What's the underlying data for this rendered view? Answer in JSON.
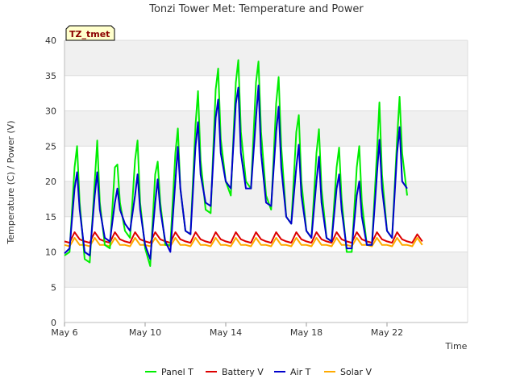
{
  "chart_data": {
    "type": "line",
    "title": "Tonzi Tower Met: Temperature and Power",
    "xlabel": "Time",
    "ylabel": "Temperature (C) / Power (V)",
    "badge": "TZ_tmet",
    "ylim": [
      0,
      40
    ],
    "yticks": [
      0,
      5,
      10,
      15,
      20,
      25,
      30,
      35,
      40
    ],
    "xlim": [
      "2024-05-06",
      "2024-05-24"
    ],
    "xticks": [
      {
        "date": "2024-05-06",
        "label": "May 6"
      },
      {
        "date": "2024-05-10",
        "label": "May 10"
      },
      {
        "date": "2024-05-14",
        "label": "May 14"
      },
      {
        "date": "2024-05-18",
        "label": "May 18"
      },
      {
        "date": "2024-05-22",
        "label": "May 22"
      }
    ],
    "grid": true,
    "legend_position": "bottom",
    "series": [
      {
        "name": "Panel T",
        "color": "#00ee00",
        "x": [
          "2024-05-06 00:00",
          "2024-05-06 06:00",
          "2024-05-06 12:00",
          "2024-05-06 15:00",
          "2024-05-06 18:00",
          "2024-05-07 00:00",
          "2024-05-07 06:00",
          "2024-05-07 12:00",
          "2024-05-07 15:00",
          "2024-05-07 18:00",
          "2024-05-08 00:00",
          "2024-05-08 06:00",
          "2024-05-08 12:00",
          "2024-05-08 15:00",
          "2024-05-08 18:00",
          "2024-05-09 00:00",
          "2024-05-09 06:00",
          "2024-05-09 12:00",
          "2024-05-09 15:00",
          "2024-05-09 18:00",
          "2024-05-10 00:00",
          "2024-05-10 06:00",
          "2024-05-10 12:00",
          "2024-05-10 15:00",
          "2024-05-10 18:00",
          "2024-05-11 00:00",
          "2024-05-11 06:00",
          "2024-05-11 12:00",
          "2024-05-11 15:00",
          "2024-05-11 18:00",
          "2024-05-12 00:00",
          "2024-05-12 06:00",
          "2024-05-12 12:00",
          "2024-05-12 15:00",
          "2024-05-12 18:00",
          "2024-05-13 00:00",
          "2024-05-13 06:00",
          "2024-05-13 12:00",
          "2024-05-13 15:00",
          "2024-05-13 18:00",
          "2024-05-14 00:00",
          "2024-05-14 06:00",
          "2024-05-14 12:00",
          "2024-05-14 15:00",
          "2024-05-14 18:00",
          "2024-05-15 00:00",
          "2024-05-15 06:00",
          "2024-05-15 12:00",
          "2024-05-15 15:00",
          "2024-05-15 18:00",
          "2024-05-16 00:00",
          "2024-05-16 06:00",
          "2024-05-16 12:00",
          "2024-05-16 15:00",
          "2024-05-16 18:00",
          "2024-05-17 00:00",
          "2024-05-17 06:00",
          "2024-05-17 12:00",
          "2024-05-17 15:00",
          "2024-05-17 18:00",
          "2024-05-18 00:00",
          "2024-05-18 06:00",
          "2024-05-18 12:00",
          "2024-05-18 15:00",
          "2024-05-18 18:00",
          "2024-05-19 00:00",
          "2024-05-19 06:00",
          "2024-05-19 12:00",
          "2024-05-19 15:00",
          "2024-05-19 18:00",
          "2024-05-20 00:00",
          "2024-05-20 06:00",
          "2024-05-20 12:00",
          "2024-05-20 15:00",
          "2024-05-20 18:00",
          "2024-05-21 00:00",
          "2024-05-21 06:00",
          "2024-05-21 12:00",
          "2024-05-21 15:00",
          "2024-05-21 18:00",
          "2024-05-22 00:00",
          "2024-05-22 06:00",
          "2024-05-22 12:00",
          "2024-05-22 15:00",
          "2024-05-22 18:00",
          "2024-05-23 00:00",
          "2024-05-23 06:00",
          "2024-05-23 12:00",
          "2024-05-23 15:00",
          "2024-05-23 18:00",
          "2024-05-24 00:00"
        ],
        "values": [
          9.5,
          10.0,
          22.0,
          25.0,
          17.0,
          9.0,
          8.5,
          20.0,
          25.8,
          17.0,
          11.0,
          10.5,
          22.0,
          22.4,
          17.0,
          13.0,
          12.0,
          23.0,
          25.8,
          17.0,
          10.5,
          8.0,
          21.0,
          22.8,
          17.0,
          11.0,
          11.0,
          24.0,
          27.5,
          19.0,
          13.0,
          12.5,
          28.0,
          32.8,
          23.0,
          16.0,
          15.5,
          33.0,
          36.0,
          26.0,
          20.0,
          18.0,
          34.0,
          37.2,
          27.0,
          20.0,
          19.0,
          34.0,
          37.0,
          27.0,
          18.0,
          16.0,
          31.0,
          34.8,
          25.0,
          15.0,
          14.0,
          27.0,
          29.4,
          20.0,
          13.0,
          12.0,
          24.0,
          27.4,
          19.0,
          12.0,
          11.5,
          22.0,
          24.8,
          17.5,
          10.0,
          10.0,
          22.0,
          25.0,
          17.0,
          11.0,
          11.0,
          24.0,
          31.2,
          21.0,
          13.0,
          12.0,
          26.0,
          32.0,
          24.0,
          18.0,
          null,
          null,
          null,
          null,
          null
        ]
      },
      {
        "name": "Battery V",
        "color": "#dd0000",
        "x": [
          "2024-05-06 00:00",
          "2024-05-06 06:00",
          "2024-05-06 12:00",
          "2024-05-06 18:00",
          "2024-05-07 00:00",
          "2024-05-07 06:00",
          "2024-05-07 12:00",
          "2024-05-07 18:00",
          "2024-05-08 00:00",
          "2024-05-08 06:00",
          "2024-05-08 12:00",
          "2024-05-08 18:00",
          "2024-05-09 00:00",
          "2024-05-09 06:00",
          "2024-05-09 12:00",
          "2024-05-09 18:00",
          "2024-05-10 00:00",
          "2024-05-10 06:00",
          "2024-05-10 12:00",
          "2024-05-10 18:00",
          "2024-05-11 00:00",
          "2024-05-11 06:00",
          "2024-05-11 12:00",
          "2024-05-11 18:00",
          "2024-05-12 00:00",
          "2024-05-12 06:00",
          "2024-05-12 12:00",
          "2024-05-12 18:00",
          "2024-05-13 00:00",
          "2024-05-13 06:00",
          "2024-05-13 12:00",
          "2024-05-13 18:00",
          "2024-05-14 00:00",
          "2024-05-14 06:00",
          "2024-05-14 12:00",
          "2024-05-14 18:00",
          "2024-05-15 00:00",
          "2024-05-15 06:00",
          "2024-05-15 12:00",
          "2024-05-15 18:00",
          "2024-05-16 00:00",
          "2024-05-16 06:00",
          "2024-05-16 12:00",
          "2024-05-16 18:00",
          "2024-05-17 00:00",
          "2024-05-17 06:00",
          "2024-05-17 12:00",
          "2024-05-17 18:00",
          "2024-05-18 00:00",
          "2024-05-18 06:00",
          "2024-05-18 12:00",
          "2024-05-18 18:00",
          "2024-05-19 00:00",
          "2024-05-19 06:00",
          "2024-05-19 12:00",
          "2024-05-19 18:00",
          "2024-05-20 00:00",
          "2024-05-20 06:00",
          "2024-05-20 12:00",
          "2024-05-20 18:00",
          "2024-05-21 00:00",
          "2024-05-21 06:00",
          "2024-05-21 12:00",
          "2024-05-21 18:00",
          "2024-05-22 00:00",
          "2024-05-22 06:00",
          "2024-05-22 12:00",
          "2024-05-22 18:00",
          "2024-05-23 00:00",
          "2024-05-23 06:00",
          "2024-05-23 12:00",
          "2024-05-23 18:00"
        ],
        "values": [
          11.5,
          11.3,
          12.8,
          11.8,
          11.5,
          11.3,
          12.8,
          11.8,
          11.5,
          11.3,
          12.8,
          11.8,
          11.5,
          11.3,
          12.8,
          11.8,
          11.5,
          11.3,
          12.8,
          11.8,
          11.5,
          11.3,
          12.8,
          11.8,
          11.5,
          11.3,
          12.8,
          11.8,
          11.5,
          11.3,
          12.8,
          11.8,
          11.5,
          11.3,
          12.8,
          11.8,
          11.5,
          11.3,
          12.8,
          11.8,
          11.5,
          11.3,
          12.8,
          11.8,
          11.5,
          11.3,
          12.8,
          11.8,
          11.5,
          11.3,
          12.8,
          11.8,
          11.5,
          11.3,
          12.8,
          11.8,
          11.5,
          11.3,
          12.8,
          11.8,
          11.5,
          11.3,
          12.8,
          11.8,
          11.5,
          11.3,
          12.8,
          11.8,
          11.5,
          11.3,
          12.5,
          11.5
        ]
      },
      {
        "name": "Air T",
        "color": "#0000cc",
        "x": [
          "2024-05-06 00:00",
          "2024-05-06 06:00",
          "2024-05-06 12:00",
          "2024-05-06 15:00",
          "2024-05-06 18:00",
          "2024-05-07 00:00",
          "2024-05-07 06:00",
          "2024-05-07 12:00",
          "2024-05-07 15:00",
          "2024-05-07 18:00",
          "2024-05-08 00:00",
          "2024-05-08 06:00",
          "2024-05-08 12:00",
          "2024-05-08 15:00",
          "2024-05-08 18:00",
          "2024-05-09 00:00",
          "2024-05-09 06:00",
          "2024-05-09 12:00",
          "2024-05-09 15:00",
          "2024-05-09 18:00",
          "2024-05-10 00:00",
          "2024-05-10 06:00",
          "2024-05-10 12:00",
          "2024-05-10 15:00",
          "2024-05-10 18:00",
          "2024-05-11 00:00",
          "2024-05-11 06:00",
          "2024-05-11 12:00",
          "2024-05-11 15:00",
          "2024-05-11 18:00",
          "2024-05-12 00:00",
          "2024-05-12 06:00",
          "2024-05-12 12:00",
          "2024-05-12 15:00",
          "2024-05-12 18:00",
          "2024-05-13 00:00",
          "2024-05-13 06:00",
          "2024-05-13 12:00",
          "2024-05-13 15:00",
          "2024-05-13 18:00",
          "2024-05-14 00:00",
          "2024-05-14 06:00",
          "2024-05-14 12:00",
          "2024-05-14 15:00",
          "2024-05-14 18:00",
          "2024-05-15 00:00",
          "2024-05-15 06:00",
          "2024-05-15 12:00",
          "2024-05-15 15:00",
          "2024-05-15 18:00",
          "2024-05-16 00:00",
          "2024-05-16 06:00",
          "2024-05-16 12:00",
          "2024-05-16 15:00",
          "2024-05-16 18:00",
          "2024-05-17 00:00",
          "2024-05-17 06:00",
          "2024-05-17 12:00",
          "2024-05-17 15:00",
          "2024-05-17 18:00",
          "2024-05-18 00:00",
          "2024-05-18 06:00",
          "2024-05-18 12:00",
          "2024-05-18 15:00",
          "2024-05-18 18:00",
          "2024-05-19 00:00",
          "2024-05-19 06:00",
          "2024-05-19 12:00",
          "2024-05-19 15:00",
          "2024-05-19 18:00",
          "2024-05-20 00:00",
          "2024-05-20 06:00",
          "2024-05-20 12:00",
          "2024-05-20 15:00",
          "2024-05-20 18:00",
          "2024-05-21 00:00",
          "2024-05-21 06:00",
          "2024-05-21 12:00",
          "2024-05-21 15:00",
          "2024-05-21 18:00",
          "2024-05-22 00:00",
          "2024-05-22 06:00",
          "2024-05-22 12:00",
          "2024-05-22 15:00",
          "2024-05-22 18:00",
          "2024-05-23 00:00",
          "2024-05-23 06:00",
          "2024-05-23 12:00",
          "2024-05-23 15:00",
          "2024-05-23 18:00",
          "2024-05-24 00:00"
        ],
        "values": [
          9.8,
          10.5,
          19.0,
          21.3,
          16.0,
          10.0,
          9.5,
          18.0,
          21.3,
          16.0,
          12.0,
          11.5,
          17.0,
          19.0,
          16.0,
          14.0,
          13.0,
          18.0,
          21.0,
          16.0,
          11.0,
          9.0,
          17.0,
          20.3,
          16.0,
          11.5,
          10.0,
          20.0,
          24.9,
          19.0,
          13.0,
          12.5,
          25.0,
          28.4,
          21.0,
          17.0,
          16.5,
          29.0,
          31.6,
          24.0,
          20.0,
          19.0,
          31.0,
          33.3,
          24.0,
          19.0,
          19.0,
          29.0,
          33.6,
          24.0,
          17.0,
          16.5,
          27.0,
          30.6,
          22.0,
          15.0,
          14.0,
          22.0,
          25.2,
          18.0,
          13.0,
          12.0,
          20.0,
          23.5,
          17.0,
          12.0,
          11.5,
          19.0,
          21.0,
          16.0,
          10.5,
          10.5,
          18.0,
          20.0,
          15.0,
          11.0,
          11.0,
          21.0,
          25.9,
          19.0,
          13.0,
          12.0,
          24.0,
          27.7,
          20.0,
          19.0,
          null,
          null,
          null,
          null,
          null
        ]
      },
      {
        "name": "Solar V",
        "color": "#ffaa00",
        "x": [
          "2024-05-06 00:00",
          "2024-05-06 06:00",
          "2024-05-06 12:00",
          "2024-05-06 18:00",
          "2024-05-07 00:00",
          "2024-05-07 06:00",
          "2024-05-07 12:00",
          "2024-05-07 18:00",
          "2024-05-08 00:00",
          "2024-05-08 06:00",
          "2024-05-08 12:00",
          "2024-05-08 18:00",
          "2024-05-09 00:00",
          "2024-05-09 06:00",
          "2024-05-09 12:00",
          "2024-05-09 18:00",
          "2024-05-10 00:00",
          "2024-05-10 06:00",
          "2024-05-10 12:00",
          "2024-05-10 18:00",
          "2024-05-11 00:00",
          "2024-05-11 06:00",
          "2024-05-11 12:00",
          "2024-05-11 18:00",
          "2024-05-12 00:00",
          "2024-05-12 06:00",
          "2024-05-12 12:00",
          "2024-05-12 18:00",
          "2024-05-13 00:00",
          "2024-05-13 06:00",
          "2024-05-13 12:00",
          "2024-05-13 18:00",
          "2024-05-14 00:00",
          "2024-05-14 06:00",
          "2024-05-14 12:00",
          "2024-05-14 18:00",
          "2024-05-15 00:00",
          "2024-05-15 06:00",
          "2024-05-15 12:00",
          "2024-05-15 18:00",
          "2024-05-16 00:00",
          "2024-05-16 06:00",
          "2024-05-16 12:00",
          "2024-05-16 18:00",
          "2024-05-17 00:00",
          "2024-05-17 06:00",
          "2024-05-17 12:00",
          "2024-05-17 18:00",
          "2024-05-18 00:00",
          "2024-05-18 06:00",
          "2024-05-18 12:00",
          "2024-05-18 18:00",
          "2024-05-19 00:00",
          "2024-05-19 06:00",
          "2024-05-19 12:00",
          "2024-05-19 18:00",
          "2024-05-20 00:00",
          "2024-05-20 06:00",
          "2024-05-20 12:00",
          "2024-05-20 18:00",
          "2024-05-21 00:00",
          "2024-05-21 06:00",
          "2024-05-21 12:00",
          "2024-05-21 18:00",
          "2024-05-22 00:00",
          "2024-05-22 06:00",
          "2024-05-22 12:00",
          "2024-05-22 18:00",
          "2024-05-23 00:00",
          "2024-05-23 06:00",
          "2024-05-23 12:00",
          "2024-05-23 18:00"
        ],
        "values": [
          11.0,
          10.8,
          12.0,
          11.0,
          11.0,
          10.8,
          12.0,
          11.0,
          11.0,
          10.8,
          12.0,
          11.0,
          11.0,
          10.8,
          12.0,
          11.0,
          11.0,
          10.8,
          12.0,
          11.0,
          11.0,
          10.8,
          12.0,
          11.0,
          11.0,
          10.8,
          12.0,
          11.0,
          11.0,
          10.8,
          12.0,
          11.0,
          11.0,
          10.8,
          12.0,
          11.0,
          11.0,
          10.8,
          12.0,
          11.0,
          11.0,
          10.8,
          12.0,
          11.0,
          11.0,
          10.8,
          12.0,
          11.0,
          11.0,
          10.8,
          12.0,
          11.0,
          11.0,
          10.8,
          12.0,
          11.0,
          11.0,
          10.8,
          12.0,
          11.0,
          11.0,
          10.8,
          12.0,
          11.0,
          11.0,
          10.8,
          12.0,
          11.0,
          11.0,
          10.8,
          12.0,
          11.0
        ]
      }
    ]
  }
}
